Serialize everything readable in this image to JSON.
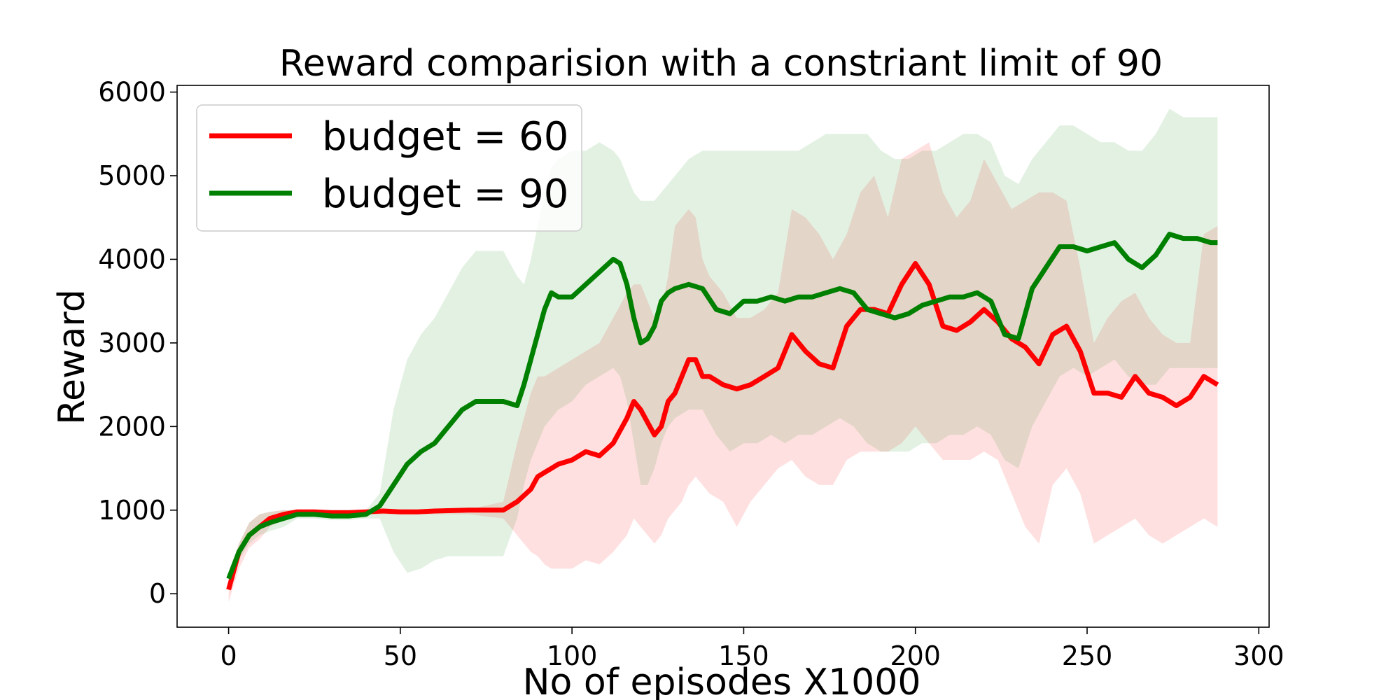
{
  "chart_data": {
    "type": "line",
    "title": "Reward comparision with a constriant limit of 90",
    "xlabel": "No of episodes X1000",
    "ylabel": "Reward",
    "xlim": [
      -15,
      303
    ],
    "ylim": [
      -400,
      6080
    ],
    "xticks": [
      0,
      50,
      100,
      150,
      200,
      250,
      300
    ],
    "yticks": [
      0,
      1000,
      2000,
      3000,
      4000,
      5000,
      6000
    ],
    "grid": false,
    "legend_position": "top-left",
    "series": [
      {
        "name": "budget = 60",
        "color": "#ff0000",
        "band_color": "#ff0000",
        "band_opacity": 0.12,
        "x": [
          0,
          3,
          6,
          9,
          12,
          16,
          20,
          25,
          30,
          35,
          40,
          45,
          50,
          55,
          60,
          70,
          80,
          84,
          88,
          90,
          92,
          94,
          96,
          100,
          104,
          108,
          112,
          116,
          118,
          120,
          122,
          124,
          126,
          128,
          130,
          132,
          134,
          136,
          138,
          140,
          144,
          148,
          152,
          156,
          160,
          164,
          168,
          172,
          176,
          180,
          184,
          188,
          192,
          196,
          200,
          204,
          208,
          212,
          216,
          220,
          224,
          228,
          232,
          236,
          240,
          244,
          248,
          252,
          256,
          260,
          264,
          268,
          272,
          276,
          280,
          284,
          288
        ],
        "y": [
          50,
          500,
          700,
          800,
          900,
          950,
          980,
          980,
          970,
          970,
          980,
          990,
          980,
          980,
          990,
          1000,
          1000,
          1100,
          1250,
          1400,
          1450,
          1500,
          1550,
          1600,
          1700,
          1650,
          1800,
          2100,
          2300,
          2200,
          2050,
          1900,
          2000,
          2300,
          2400,
          2600,
          2800,
          2800,
          2600,
          2600,
          2500,
          2450,
          2500,
          2600,
          2700,
          3100,
          2900,
          2750,
          2700,
          3200,
          3400,
          3400,
          3350,
          3700,
          3950,
          3700,
          3200,
          3150,
          3250,
          3400,
          3250,
          3050,
          2950,
          2750,
          3100,
          3200,
          2900,
          2400,
          2400,
          2350,
          2600,
          2400,
          2350,
          2250,
          2350,
          2600,
          2500
        ],
        "upper": [
          150,
          600,
          850,
          950,
          980,
          1000,
          1000,
          1000,
          1000,
          1000,
          1000,
          1010,
          1010,
          1010,
          1010,
          1010,
          1100,
          1800,
          2400,
          2600,
          2600,
          2650,
          2700,
          2800,
          2900,
          3000,
          3300,
          3600,
          3700,
          3700,
          3500,
          3300,
          3400,
          3800,
          4400,
          4500,
          4600,
          4500,
          4000,
          3800,
          3600,
          3300,
          3300,
          3400,
          3600,
          4600,
          4500,
          4300,
          4000,
          4300,
          4800,
          5000,
          4500,
          5200,
          5300,
          5400,
          4800,
          4500,
          4700,
          5200,
          4900,
          4600,
          4700,
          4800,
          4800,
          4700,
          3900,
          3000,
          3300,
          3500,
          3600,
          3300,
          3100,
          3000,
          3000,
          4300,
          4400
        ],
        "lower": [
          -100,
          300,
          550,
          650,
          800,
          900,
          950,
          950,
          950,
          950,
          950,
          950,
          950,
          950,
          950,
          950,
          900,
          700,
          500,
          450,
          350,
          300,
          300,
          300,
          400,
          350,
          500,
          700,
          900,
          800,
          700,
          600,
          700,
          900,
          1000,
          1100,
          1300,
          1400,
          1300,
          1200,
          1100,
          800,
          1100,
          1300,
          1500,
          1600,
          1400,
          1300,
          1300,
          1600,
          1700,
          1700,
          1700,
          1800,
          2000,
          1800,
          1600,
          1600,
          1600,
          1700,
          1600,
          1200,
          800,
          600,
          1300,
          1500,
          1200,
          600,
          700,
          800,
          900,
          700,
          600,
          700,
          800,
          900,
          800
        ]
      },
      {
        "name": "budget = 90",
        "color": "#008000",
        "band_color": "#008000",
        "band_opacity": 0.11,
        "x": [
          0,
          3,
          6,
          9,
          12,
          16,
          20,
          25,
          30,
          35,
          40,
          44,
          48,
          52,
          56,
          60,
          64,
          68,
          72,
          76,
          80,
          84,
          86,
          88,
          90,
          92,
          94,
          96,
          100,
          104,
          108,
          112,
          114,
          116,
          118,
          120,
          122,
          124,
          126,
          128,
          130,
          134,
          138,
          142,
          146,
          150,
          154,
          158,
          162,
          166,
          170,
          174,
          178,
          182,
          186,
          190,
          194,
          198,
          202,
          206,
          210,
          214,
          218,
          222,
          226,
          230,
          234,
          238,
          242,
          246,
          250,
          254,
          258,
          262,
          266,
          270,
          274,
          278,
          282,
          286,
          288
        ],
        "y": [
          180,
          500,
          700,
          800,
          850,
          900,
          950,
          950,
          930,
          930,
          950,
          1050,
          1300,
          1550,
          1700,
          1800,
          2000,
          2200,
          2300,
          2300,
          2300,
          2250,
          2500,
          2800,
          3100,
          3400,
          3600,
          3550,
          3550,
          3700,
          3850,
          4000,
          3950,
          3700,
          3300,
          3000,
          3050,
          3200,
          3500,
          3600,
          3650,
          3700,
          3650,
          3400,
          3350,
          3500,
          3500,
          3550,
          3500,
          3550,
          3550,
          3600,
          3650,
          3600,
          3400,
          3350,
          3300,
          3350,
          3450,
          3500,
          3550,
          3550,
          3600,
          3500,
          3100,
          3050,
          3650,
          3900,
          4150,
          4150,
          4100,
          4150,
          4200,
          4000,
          3900,
          4050,
          4300,
          4250,
          4250,
          4200,
          4200
        ],
        "upper": [
          250,
          600,
          850,
          950,
          980,
          1000,
          1000,
          1000,
          1000,
          1000,
          1000,
          1200,
          2200,
          2800,
          3100,
          3300,
          3600,
          3900,
          4100,
          4100,
          4100,
          3800,
          3700,
          4000,
          4400,
          4800,
          5100,
          5200,
          5300,
          5300,
          5400,
          5300,
          5200,
          5000,
          4800,
          4700,
          4700,
          4700,
          4800,
          4900,
          5000,
          5200,
          5300,
          5300,
          5300,
          5300,
          5300,
          5300,
          5300,
          5300,
          5400,
          5500,
          5500,
          5500,
          5500,
          5300,
          5200,
          5200,
          5300,
          5300,
          5400,
          5500,
          5500,
          5400,
          5000,
          4900,
          5200,
          5400,
          5600,
          5600,
          5500,
          5400,
          5400,
          5300,
          5300,
          5500,
          5800,
          5700,
          5700,
          5700,
          5700
        ],
        "lower": [
          120,
          400,
          600,
          700,
          750,
          800,
          900,
          900,
          880,
          880,
          900,
          900,
          500,
          250,
          300,
          400,
          450,
          450,
          450,
          450,
          450,
          900,
          1300,
          1600,
          1800,
          2000,
          2100,
          2200,
          2300,
          2500,
          2600,
          2700,
          2600,
          2300,
          1800,
          1300,
          1300,
          1500,
          1800,
          2000,
          2100,
          2200,
          2200,
          1900,
          1700,
          1800,
          1800,
          1900,
          1800,
          1900,
          1900,
          2000,
          2100,
          2000,
          1800,
          1700,
          1700,
          1700,
          1800,
          1800,
          1900,
          1900,
          2000,
          1900,
          1600,
          1500,
          2000,
          2300,
          2600,
          2700,
          2600,
          2700,
          2800,
          2600,
          2500,
          2500,
          2700,
          2700,
          2700,
          2700,
          2700
        ]
      }
    ]
  }
}
